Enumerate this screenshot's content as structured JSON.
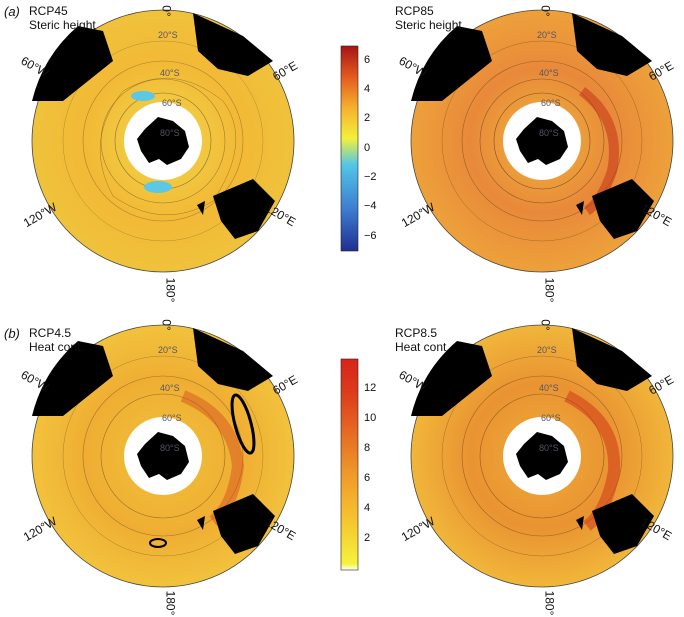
{
  "panels": [
    {
      "letter": "(a)",
      "left_title": "RCP45\nSteric height",
      "right_title": "RCP85\nSteric height"
    },
    {
      "letter": "(b)",
      "left_title": "RCP4.5\nHeat cont.",
      "right_title": "RCP8.5\nHeat cont."
    }
  ],
  "coords": {
    "lon_0": "0°",
    "lon_60e": "60°E",
    "lon_60w": "60°W",
    "lon_120e": "120°E",
    "lon_120w": "120°W",
    "lon_180": "180°",
    "lat_20s": "20°S",
    "lat_40s": "40°S",
    "lat_60s": "60°S",
    "lat_80s": "80°S"
  },
  "colorbar_steric": {
    "ticks": [
      "6",
      "4",
      "2",
      "0",
      "−2",
      "−4",
      "−6"
    ],
    "range": [
      -7,
      7
    ],
    "colors": [
      "#1f2f8f",
      "#3d7bd0",
      "#52c6e8",
      "#f4f03a",
      "#f5b02e",
      "#e35a1e",
      "#a61414"
    ]
  },
  "colorbar_heat": {
    "ticks": [
      "12",
      "10",
      "8",
      "6",
      "4",
      "2"
    ],
    "range": [
      0,
      14
    ],
    "colors": [
      "#f6f23c",
      "#f6c12f",
      "#f09a2b",
      "#e66a22",
      "#dc3a1b",
      "#d8231a"
    ]
  }
}
